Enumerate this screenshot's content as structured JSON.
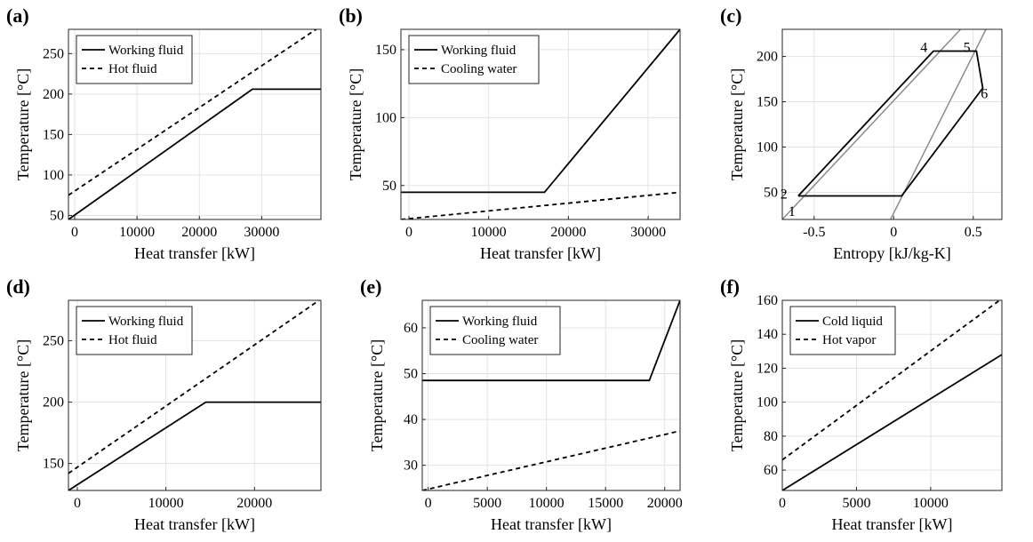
{
  "chart_data": [
    {
      "panel_label": "(a)",
      "type": "line",
      "xlabel": "Heat transfer [kW]",
      "ylabel": "Temperature [°C]",
      "xlim": [
        -1000,
        39500
      ],
      "ylim": [
        45,
        280
      ],
      "xticks": [
        0,
        10000,
        20000,
        30000
      ],
      "yticks": [
        50,
        100,
        150,
        200,
        250
      ],
      "grid": true,
      "legend_position": "top-left",
      "series": [
        {
          "name": "Working fluid",
          "style": "solid",
          "color": "#000000",
          "x": [
            -1000,
            28500,
            39500
          ],
          "y": [
            45,
            206,
            206
          ]
        },
        {
          "name": "Hot fluid",
          "style": "dashed",
          "color": "#000000",
          "x": [
            -1000,
            39500
          ],
          "y": [
            75,
            284
          ]
        }
      ]
    },
    {
      "panel_label": "(b)",
      "type": "line",
      "xlabel": "Heat transfer [kW]",
      "ylabel": "Temperature [°C]",
      "xlim": [
        -1000,
        34000
      ],
      "ylim": [
        25,
        165
      ],
      "xticks": [
        0,
        10000,
        20000,
        30000
      ],
      "yticks": [
        50,
        100,
        150
      ],
      "grid": true,
      "legend_position": "top-left",
      "series": [
        {
          "name": "Working fluid",
          "style": "solid",
          "color": "#000000",
          "x": [
            -1000,
            17000,
            34000
          ],
          "y": [
            45,
            45,
            165
          ]
        },
        {
          "name": "Cooling water",
          "style": "dashed",
          "color": "#000000",
          "x": [
            -1000,
            34000
          ],
          "y": [
            25,
            45
          ]
        }
      ]
    },
    {
      "panel_label": "(c)",
      "type": "line",
      "xlabel": "Entropy [kJ/kg-K]",
      "ylabel": "Temperature [°C]",
      "xlim": [
        -0.7,
        0.68
      ],
      "ylim": [
        20,
        230
      ],
      "xticks": [
        -0.5,
        0,
        0.5
      ],
      "xtick_labels": [
        "-0.5",
        "0",
        "0.5"
      ],
      "yticks": [
        50,
        100,
        150,
        200
      ],
      "grid": true,
      "series": [
        {
          "style": "solid",
          "color": "#8c8c8c",
          "x": [
            -0.7,
            0.42
          ],
          "y": [
            20,
            230
          ]
        },
        {
          "style": "solid",
          "color": "#8c8c8c",
          "x": [
            -0.02,
            0.58
          ],
          "y": [
            20,
            230
          ]
        },
        {
          "style": "solid",
          "color": "#000000",
          "x": [
            -0.6,
            0.25,
            0.52,
            0.56,
            0.05,
            -0.6,
            -0.6
          ],
          "y": [
            46,
            206,
            206,
            165,
            46,
            46,
            46
          ]
        }
      ],
      "annotations": [
        {
          "text": "1",
          "x": -0.64,
          "y": 30
        },
        {
          "text": "2",
          "x": -0.69,
          "y": 49
        },
        {
          "text": "4",
          "x": 0.19,
          "y": 211
        },
        {
          "text": "5",
          "x": 0.46,
          "y": 211
        },
        {
          "text": "6",
          "x": 0.57,
          "y": 160
        }
      ]
    },
    {
      "panel_label": "(d)",
      "type": "line",
      "xlabel": "Heat transfer [kW]",
      "ylabel": "Temperature [°C]",
      "xlim": [
        -1000,
        27500
      ],
      "ylim": [
        128,
        283
      ],
      "xticks": [
        0,
        10000,
        20000
      ],
      "yticks": [
        150,
        200,
        250
      ],
      "grid": true,
      "legend_position": "top-left",
      "series": [
        {
          "name": "Working fluid",
          "style": "solid",
          "color": "#000000",
          "x": [
            -1000,
            14500,
            27500
          ],
          "y": [
            128,
            200,
            200
          ]
        },
        {
          "name": "Hot fluid",
          "style": "dashed",
          "color": "#000000",
          "x": [
            -1000,
            27500
          ],
          "y": [
            142,
            284
          ]
        }
      ]
    },
    {
      "panel_label": "(e)",
      "type": "line",
      "xlabel": "Heat transfer [kW]",
      "ylabel": "Temperature [°C]",
      "xlim": [
        -500,
        21300
      ],
      "ylim": [
        24.5,
        66
      ],
      "xticks": [
        0,
        5000,
        10000,
        15000,
        20000
      ],
      "yticks": [
        30,
        40,
        50,
        60
      ],
      "grid": true,
      "legend_position": "top-left",
      "series": [
        {
          "name": "Working fluid",
          "style": "solid",
          "color": "#000000",
          "x": [
            -500,
            18700,
            21300
          ],
          "y": [
            48.5,
            48.5,
            66
          ]
        },
        {
          "name": "Cooling water",
          "style": "dashed",
          "color": "#000000",
          "x": [
            -500,
            21300
          ],
          "y": [
            24.5,
            37.5
          ]
        }
      ]
    },
    {
      "panel_label": "(f)",
      "type": "line",
      "xlabel": "Heat transfer [kW]",
      "ylabel": "Temperature [°C]",
      "xlim": [
        0,
        14800
      ],
      "ylim": [
        48,
        160
      ],
      "xticks": [
        0,
        5000,
        10000
      ],
      "yticks": [
        60,
        80,
        100,
        120,
        140,
        160
      ],
      "grid": true,
      "legend_position": "top-left",
      "series": [
        {
          "name": "Cold liquid",
          "style": "solid",
          "color": "#000000",
          "x": [
            0,
            14800
          ],
          "y": [
            48,
            128
          ]
        },
        {
          "name": "Hot vapor",
          "style": "dashed",
          "color": "#000000",
          "x": [
            0,
            14800
          ],
          "y": [
            66,
            161
          ]
        }
      ]
    }
  ]
}
